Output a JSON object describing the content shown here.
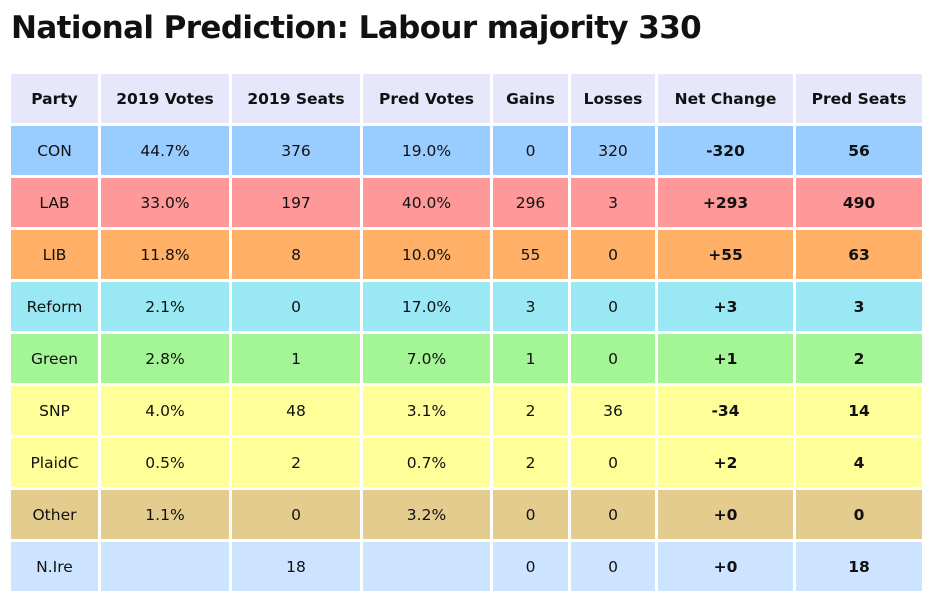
{
  "page_title": "National Prediction: Labour majority 330",
  "headers": [
    "Party",
    "2019 Votes",
    "2019 Seats",
    "Pred Votes",
    "Gains",
    "Losses",
    "Net Change",
    "Pred Seats"
  ],
  "rows": [
    {
      "party": "CON",
      "votes_2019": "44.7%",
      "seats_2019": "376",
      "pred_votes": "19.0%",
      "gains": "0",
      "losses": "320",
      "net_change": "-320",
      "pred_seats": "56",
      "color": "#99ccff"
    },
    {
      "party": "LAB",
      "votes_2019": "33.0%",
      "seats_2019": "197",
      "pred_votes": "40.0%",
      "gains": "296",
      "losses": "3",
      "net_change": "+293",
      "pred_seats": "490",
      "color": "#ff9999"
    },
    {
      "party": "LIB",
      "votes_2019": "11.8%",
      "seats_2019": "8",
      "pred_votes": "10.0%",
      "gains": "55",
      "losses": "0",
      "net_change": "+55",
      "pred_seats": "63",
      "color": "#ffb066"
    },
    {
      "party": "Reform",
      "votes_2019": "2.1%",
      "seats_2019": "0",
      "pred_votes": "17.0%",
      "gains": "3",
      "losses": "0",
      "net_change": "+3",
      "pred_seats": "3",
      "color": "#99e8f4"
    },
    {
      "party": "Green",
      "votes_2019": "2.8%",
      "seats_2019": "1",
      "pred_votes": "7.0%",
      "gains": "1",
      "losses": "0",
      "net_change": "+1",
      "pred_seats": "2",
      "color": "#a4f596"
    },
    {
      "party": "SNP",
      "votes_2019": "4.0%",
      "seats_2019": "48",
      "pred_votes": "3.1%",
      "gains": "2",
      "losses": "36",
      "net_change": "-34",
      "pred_seats": "14",
      "color": "#ffff99"
    },
    {
      "party": "PlaidC",
      "votes_2019": "0.5%",
      "seats_2019": "2",
      "pred_votes": "0.7%",
      "gains": "2",
      "losses": "0",
      "net_change": "+2",
      "pred_seats": "4",
      "color": "#ffff99"
    },
    {
      "party": "Other",
      "votes_2019": "1.1%",
      "seats_2019": "0",
      "pred_votes": "3.2%",
      "gains": "0",
      "losses": "0",
      "net_change": "+0",
      "pred_seats": "0",
      "color": "#e4cc8f"
    },
    {
      "party": "N.Ire",
      "votes_2019": "",
      "seats_2019": "18",
      "pred_votes": "",
      "gains": "0",
      "losses": "0",
      "net_change": "+0",
      "pred_seats": "18",
      "color": "#cce4ff"
    }
  ]
}
